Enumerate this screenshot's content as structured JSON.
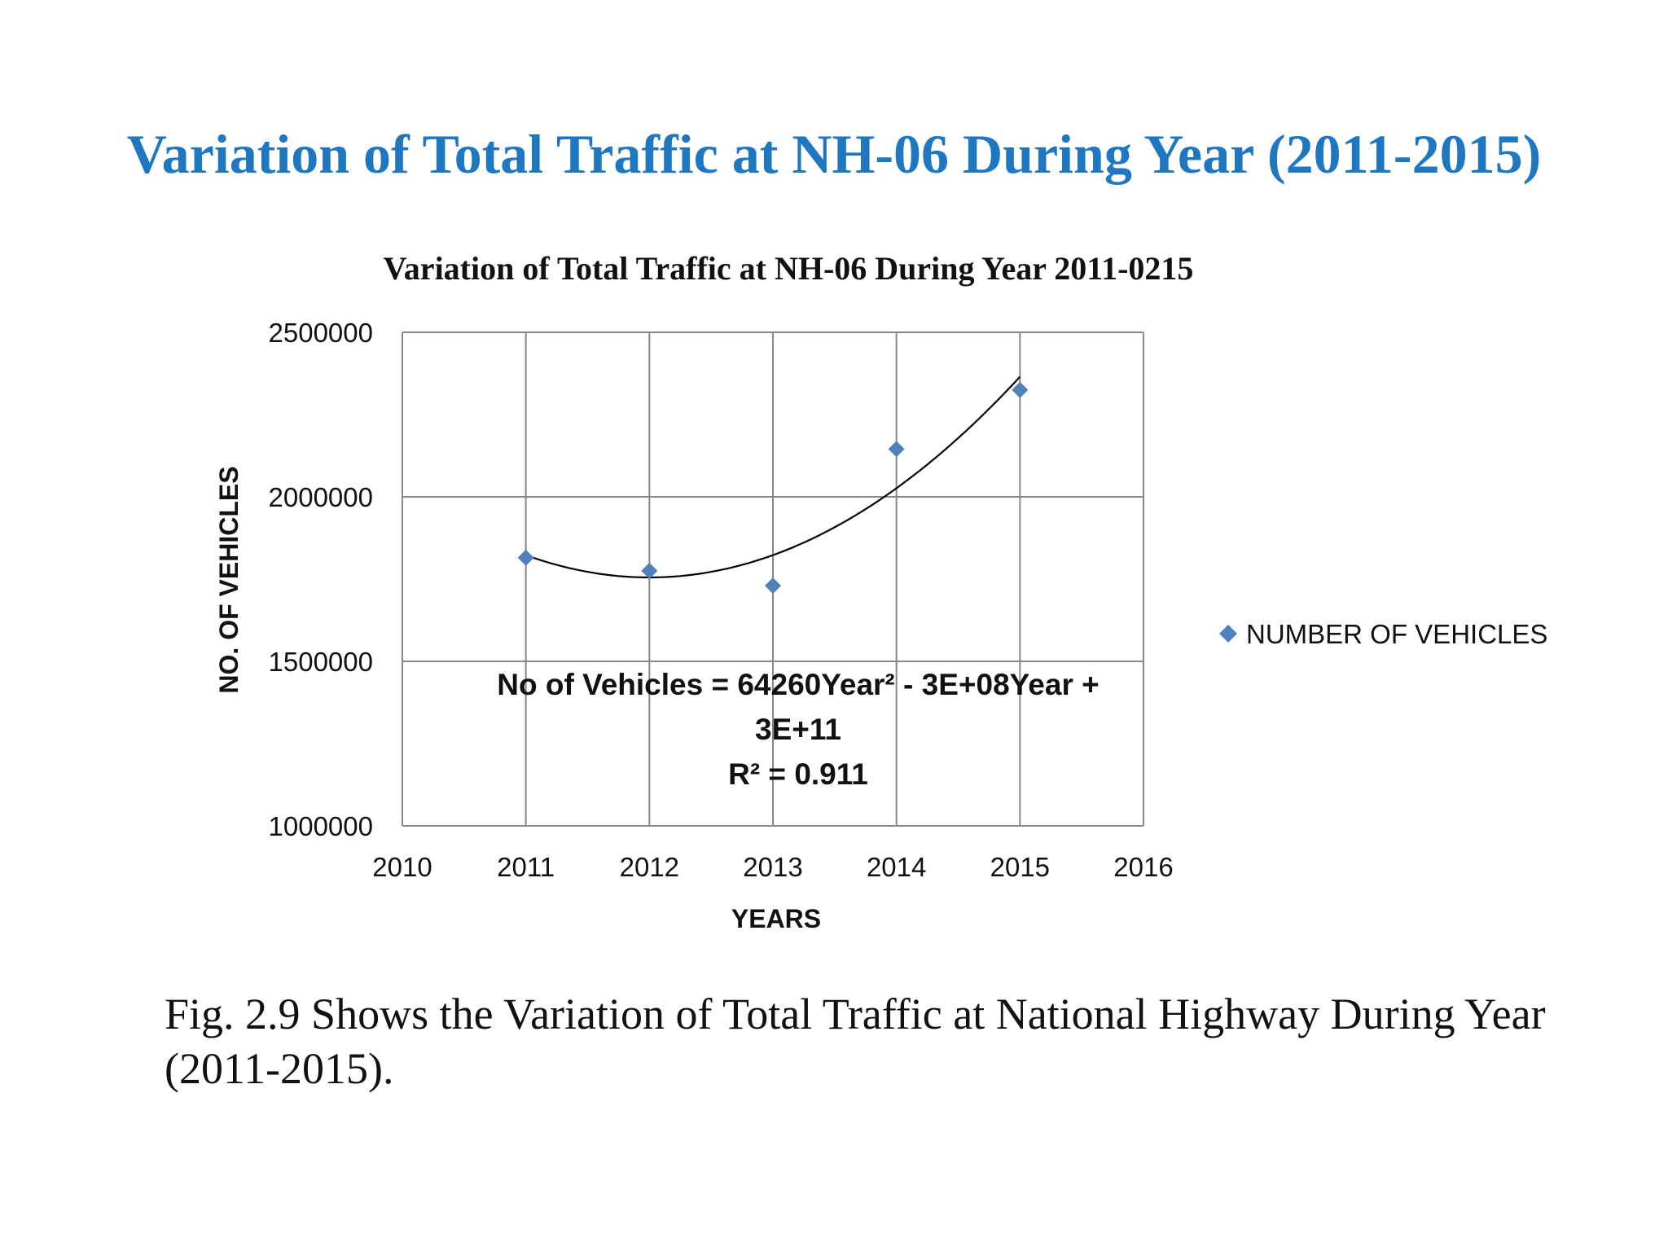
{
  "slide": {
    "title": "Variation of Total Traffic at NH-06 During Year (2011-2015)",
    "caption": "Fig. 2.9 Shows the Variation of  Total Traffic at National Highway During Year (2011-2015)."
  },
  "colors": {
    "title": "#1f77c2",
    "marker": "#4f81bd",
    "grid": "#888888",
    "trendline": "#000000"
  },
  "chart_data": {
    "type": "scatter",
    "title": "Variation of Total Traffic at NH-06 During Year 2011-0215",
    "xlabel": "YEARS",
    "ylabel": "NO. OF  VEHICLES",
    "xlim": [
      2010,
      2016
    ],
    "ylim": [
      1000000,
      2500000
    ],
    "x_ticks": [
      2010,
      2011,
      2012,
      2013,
      2014,
      2015,
      2016
    ],
    "y_ticks": [
      1000000,
      1500000,
      2000000,
      2500000
    ],
    "grid": true,
    "legend_position": "right",
    "series": [
      {
        "name": "NUMBER OF VEHICLES",
        "marker": "diamond",
        "x": [
          2011,
          2012,
          2013,
          2014,
          2015
        ],
        "y": [
          1815000,
          1775000,
          1730000,
          2145000,
          2325000
        ]
      }
    ],
    "trendline": {
      "type": "polynomial",
      "order": 2,
      "equation_line1": "No of Vehicles = 64260Year² - 3E+08Year +",
      "equation_line2": "3E+11",
      "r_squared": "R² = 0.911",
      "fit": {
        "x": [
          2011,
          2015
        ],
        "vertex_x": 2012.0,
        "vertex_y": 1755000,
        "end_y": 2365000
      }
    }
  }
}
